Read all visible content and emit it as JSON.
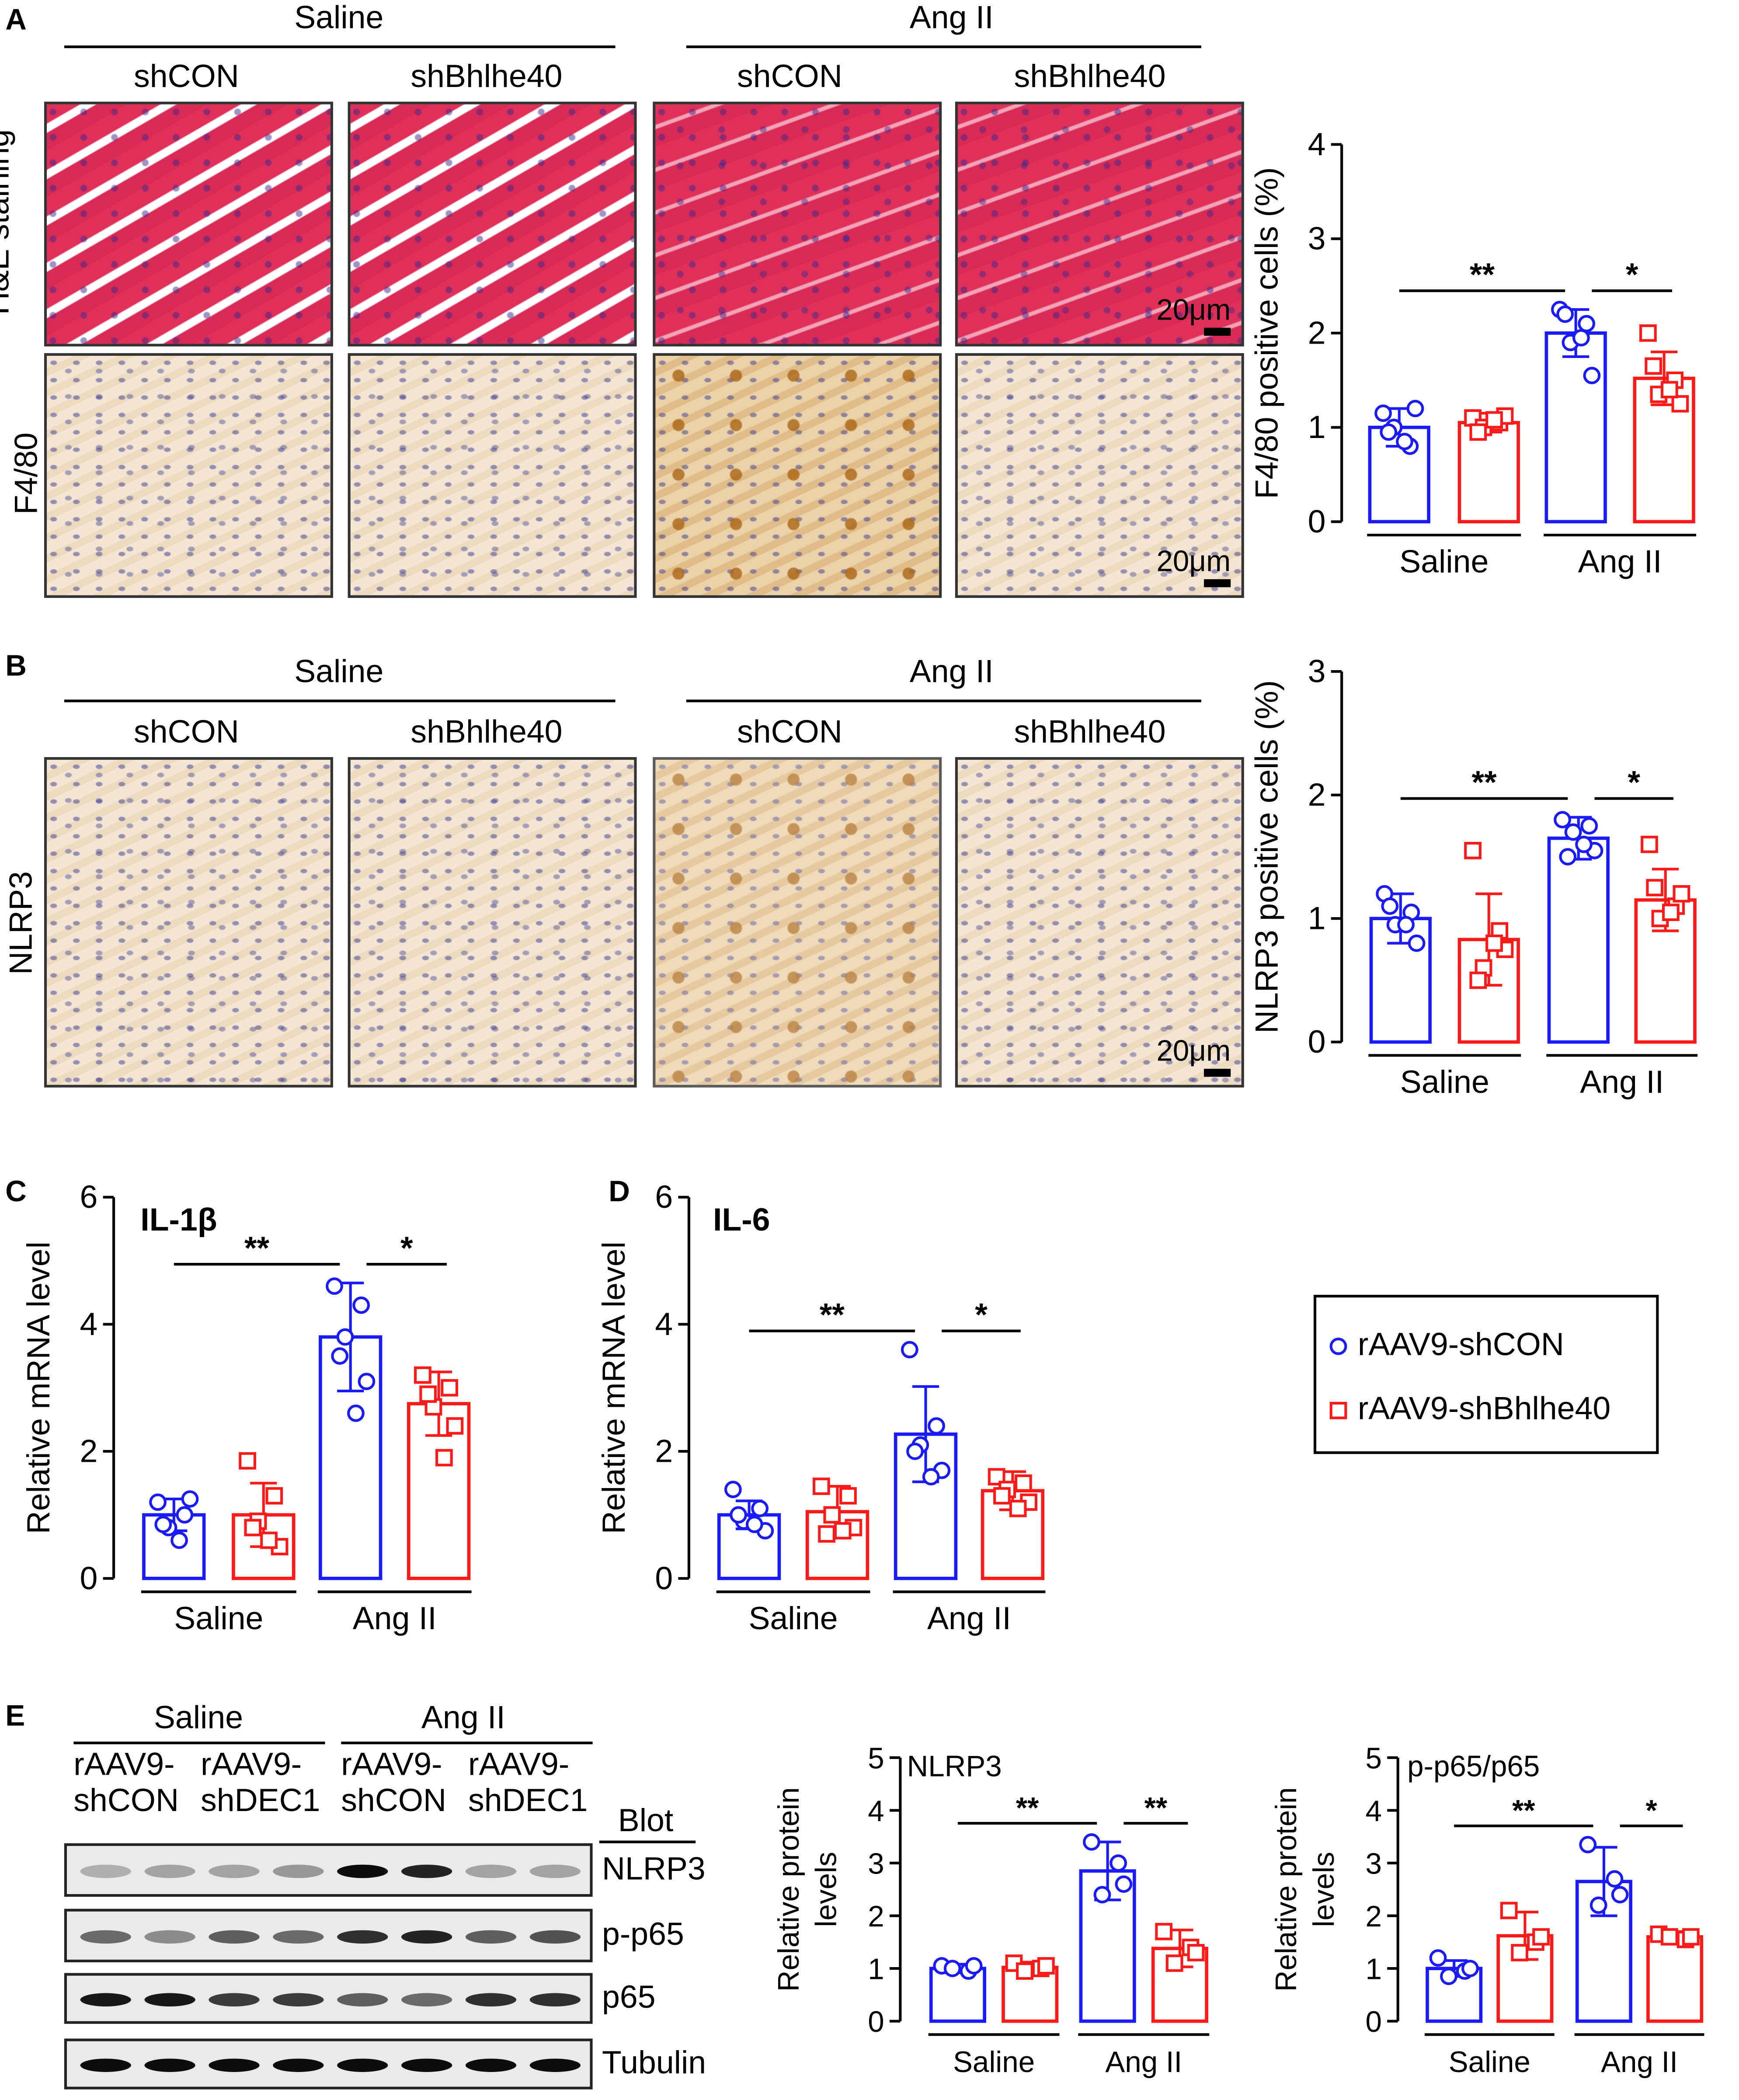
{
  "panels": {
    "A": "A",
    "B": "B",
    "C": "C",
    "D": "D",
    "E": "E"
  },
  "histology": {
    "groups": [
      "Saline",
      "Ang II"
    ],
    "subgroups": [
      "shCON",
      "shBhlhe40",
      "shCON",
      "shBhlhe40"
    ],
    "rows_A": [
      "H&E staining",
      "F4/80"
    ],
    "rows_B": [
      "NLRP3"
    ],
    "scale_bar": "20μm"
  },
  "blot": {
    "groups": [
      "Saline",
      "Ang II"
    ],
    "lane_line1": [
      "rAAV9-",
      "rAAV9-",
      "rAAV9-",
      "rAAV9-"
    ],
    "lane_line2": [
      "shCON",
      "shDEC1",
      "shCON",
      "shDEC1"
    ],
    "blot_header": "Blot",
    "rows": [
      "NLRP3",
      "p-p65",
      "p65",
      "Tubulin"
    ]
  },
  "legend": {
    "items": [
      {
        "label": "rAAV9-shCON",
        "color": "#1a1aff",
        "marker": "circle"
      },
      {
        "label": "rAAV9-shBhlhe40",
        "color": "#ff1a1a",
        "marker": "square"
      }
    ]
  },
  "colors": {
    "shCON": "#1a1aff",
    "shBhlhe40": "#ff1a1a"
  },
  "chart_data": [
    {
      "id": "A",
      "type": "bar",
      "title": "",
      "ylabel": "F4/80 positive cells (%)",
      "ylim": [
        0,
        4
      ],
      "yticks": [
        0,
        1,
        2,
        3,
        4
      ],
      "groups": [
        "Saline",
        "Ang II"
      ],
      "series_order": [
        "shCON",
        "shBhlhe40",
        "shCON",
        "shBhlhe40"
      ],
      "values": [
        1.0,
        1.05,
        2.0,
        1.52
      ],
      "errors": [
        0.2,
        0.1,
        0.25,
        0.28
      ],
      "points": [
        [
          1.15,
          0.8,
          1.0,
          1.2,
          0.95,
          0.85
        ],
        [
          1.1,
          1.05,
          1.0,
          1.12,
          0.95,
          1.08
        ],
        [
          2.25,
          2.1,
          1.9,
          1.55,
          2.2,
          1.95
        ],
        [
          2.0,
          1.5,
          1.35,
          1.25,
          1.65,
          1.4
        ]
      ],
      "significance": [
        {
          "label": "**",
          "from": 0,
          "to": 2
        },
        {
          "label": "*",
          "from": 2,
          "to": 3
        }
      ]
    },
    {
      "id": "B",
      "type": "bar",
      "title": "",
      "ylabel": "NLRP3 positive cells (%)",
      "ylim": [
        0,
        3
      ],
      "yticks": [
        0,
        1,
        2,
        3
      ],
      "groups": [
        "Saline",
        "Ang II"
      ],
      "series_order": [
        "shCON",
        "shBhlhe40",
        "shCON",
        "shBhlhe40"
      ],
      "values": [
        1.0,
        0.83,
        1.65,
        1.15
      ],
      "errors": [
        0.2,
        0.37,
        0.17,
        0.25
      ],
      "points": [
        [
          1.2,
          1.05,
          0.95,
          0.8,
          1.1,
          0.95
        ],
        [
          1.55,
          0.9,
          0.6,
          0.75,
          0.5,
          0.8
        ],
        [
          1.8,
          1.75,
          1.7,
          1.55,
          1.5,
          1.6
        ],
        [
          1.6,
          1.1,
          1.0,
          1.2,
          1.25,
          1.05
        ]
      ],
      "significance": [
        {
          "label": "**",
          "from": 0,
          "to": 2
        },
        {
          "label": "*",
          "from": 2,
          "to": 3
        }
      ]
    },
    {
      "id": "C",
      "type": "bar",
      "title": "IL-1β",
      "ylabel": "Relative mRNA level",
      "ylim": [
        0,
        6
      ],
      "yticks": [
        0,
        2,
        4,
        6
      ],
      "groups": [
        "Saline",
        "Ang II"
      ],
      "series_order": [
        "shCON",
        "shBhlhe40",
        "shCON",
        "shBhlhe40"
      ],
      "values": [
        1.0,
        1.0,
        3.8,
        2.75
      ],
      "errors": [
        0.25,
        0.5,
        0.85,
        0.5
      ],
      "points": [
        [
          1.2,
          1.0,
          0.8,
          1.25,
          0.85,
          0.6
        ],
        [
          1.85,
          1.3,
          0.9,
          0.5,
          0.8,
          0.6
        ],
        [
          4.6,
          4.3,
          3.8,
          3.1,
          3.5,
          2.6
        ],
        [
          3.2,
          3.0,
          2.7,
          2.4,
          2.9,
          1.9
        ]
      ],
      "significance": [
        {
          "label": "**",
          "from": 0,
          "to": 2
        },
        {
          "label": "*",
          "from": 2,
          "to": 3
        }
      ]
    },
    {
      "id": "D",
      "type": "bar",
      "title": "IL-6",
      "ylabel": "Relative mRNA level",
      "ylim": [
        0,
        6
      ],
      "yticks": [
        0,
        2,
        4,
        6
      ],
      "groups": [
        "Saline",
        "Ang II"
      ],
      "series_order": [
        "shCON",
        "shBhlhe40",
        "shCON",
        "shBhlhe40"
      ],
      "values": [
        1.0,
        1.05,
        2.27,
        1.38
      ],
      "errors": [
        0.22,
        0.4,
        0.75,
        0.3
      ],
      "points": [
        [
          1.4,
          1.1,
          0.9,
          0.75,
          1.0,
          0.85
        ],
        [
          1.45,
          1.3,
          1.0,
          0.8,
          0.7,
          0.75
        ],
        [
          3.6,
          2.4,
          2.1,
          1.7,
          2.0,
          1.6
        ],
        [
          1.6,
          1.5,
          1.4,
          1.2,
          1.3,
          1.1
        ]
      ],
      "significance": [
        {
          "label": "**",
          "from": 0,
          "to": 2
        },
        {
          "label": "*",
          "from": 2,
          "to": 3
        }
      ]
    },
    {
      "id": "E1",
      "type": "bar",
      "title": "NLRP3",
      "ylabel": "Relative protein\nlevels",
      "ylim": [
        0,
        5
      ],
      "yticks": [
        0,
        1,
        2,
        3,
        4,
        5
      ],
      "groups": [
        "Saline",
        "Ang II"
      ],
      "series_order": [
        "shCON",
        "shBhlhe40",
        "shCON",
        "shBhlhe40"
      ],
      "values": [
        1.0,
        1.02,
        2.85,
        1.38
      ],
      "errors": [
        0.08,
        0.1,
        0.55,
        0.35
      ],
      "points": [
        [
          1.05,
          0.95,
          1.0,
          1.05
        ],
        [
          1.1,
          1.0,
          0.95,
          1.05
        ],
        [
          3.4,
          3.0,
          2.4,
          2.6
        ],
        [
          1.7,
          1.4,
          1.1,
          1.3
        ]
      ],
      "significance": [
        {
          "label": "**",
          "from": 0,
          "to": 2
        },
        {
          "label": "**",
          "from": 2,
          "to": 3
        }
      ]
    },
    {
      "id": "E2",
      "type": "bar",
      "title": "p-p65/p65",
      "ylabel": "Relative protein\nlevels",
      "ylim": [
        0,
        5
      ],
      "yticks": [
        0,
        1,
        2,
        3,
        4,
        5
      ],
      "groups": [
        "Saline",
        "Ang II"
      ],
      "series_order": [
        "shCON",
        "shBhlhe40",
        "shCON",
        "shBhlhe40"
      ],
      "values": [
        1.0,
        1.62,
        2.65,
        1.6
      ],
      "errors": [
        0.15,
        0.45,
        0.65,
        0.1
      ],
      "points": [
        [
          1.2,
          0.95,
          0.85,
          1.0
        ],
        [
          2.1,
          1.5,
          1.3,
          1.6
        ],
        [
          3.35,
          2.7,
          2.2,
          2.4
        ],
        [
          1.65,
          1.55,
          1.6,
          1.6
        ]
      ],
      "significance": [
        {
          "label": "**",
          "from": 0,
          "to": 2
        },
        {
          "label": "*",
          "from": 2,
          "to": 3
        }
      ]
    }
  ]
}
